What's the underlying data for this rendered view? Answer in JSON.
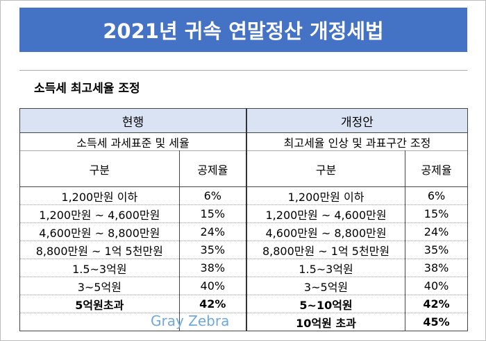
{
  "title": "2021년 귀속 연말정산 개정세법",
  "section": "소득세 최고세율 조정",
  "table": {
    "current": {
      "heading": "현행",
      "subheading": "소득세 과세표준 및 세율",
      "columns": [
        "구분",
        "공제율"
      ],
      "rows": [
        [
          "1,200만원 이하",
          "6%"
        ],
        [
          "1,200만원 ~ 4,600만원",
          "15%"
        ],
        [
          "4,600만원 ~ 8,800만원",
          "24%"
        ],
        [
          "8,800만원 ~ 1억 5천만원",
          "35%"
        ],
        [
          "1.5~3억원",
          "38%"
        ],
        [
          "3~5억원",
          "40%"
        ],
        [
          "5억원초과",
          "42%"
        ]
      ]
    },
    "revised": {
      "heading": "개정안",
      "subheading": "최고세율 인상 및 과표구간 조정",
      "columns": [
        "구분",
        "공제율"
      ],
      "rows": [
        [
          "1,200만원 이하",
          "6%"
        ],
        [
          "1,200만원 ~ 4,600만원",
          "15%"
        ],
        [
          "4,600만원 ~ 8,800만원",
          "24%"
        ],
        [
          "8,800만원 ~ 1억 5천만원",
          "35%"
        ],
        [
          "1.5~3억원",
          "38%"
        ],
        [
          "3~5억원",
          "40%"
        ],
        [
          "5~10억원",
          "42%"
        ],
        [
          "10억원 초과",
          "45%"
        ]
      ]
    }
  },
  "watermark": "Gray Zebra"
}
